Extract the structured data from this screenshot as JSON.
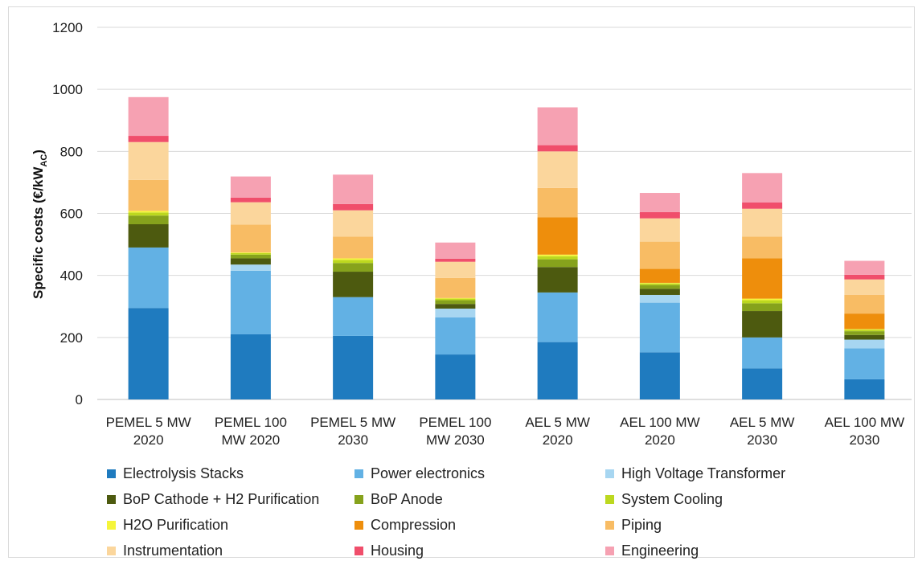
{
  "chart_data": {
    "type": "bar",
    "stacked": true,
    "ylabel": "Specific costs (€/kW",
    "ylabel_sub": "AC",
    "ylabel_close": ")",
    "ylim": [
      0,
      1200
    ],
    "yticks": [
      0,
      200,
      400,
      600,
      800,
      1000,
      1200
    ],
    "grid": "horizontal",
    "legend_position": "bottom",
    "categories": [
      [
        "PEMEL 5 MW",
        "2020"
      ],
      [
        "PEMEL 100",
        "MW 2020"
      ],
      [
        "PEMEL 5 MW",
        "2030"
      ],
      [
        "PEMEL 100",
        "MW 2030"
      ],
      [
        "AEL 5 MW",
        "2020"
      ],
      [
        "AEL 100 MW",
        "2020"
      ],
      [
        "AEL 5 MW",
        "2030"
      ],
      [
        "AEL 100 MW",
        "2030"
      ]
    ],
    "series": [
      {
        "name": "Electrolysis Stacks",
        "color": "#1f7bbf",
        "values": [
          295,
          210,
          205,
          145,
          185,
          152,
          100,
          65
        ]
      },
      {
        "name": "Power electronics",
        "color": "#62b1e4",
        "values": [
          195,
          205,
          125,
          120,
          160,
          160,
          100,
          100
        ]
      },
      {
        "name": "High Voltage Transformer",
        "color": "#a7d6f1",
        "values": [
          0,
          20,
          0,
          28,
          0,
          25,
          0,
          28
        ]
      },
      {
        "name": "BoP Cathode + H2 Purification",
        "color": "#4d5a0f",
        "values": [
          75,
          20,
          82,
          15,
          82,
          20,
          85,
          15
        ]
      },
      {
        "name": "BoP Anode",
        "color": "#86a21c",
        "values": [
          28,
          12,
          28,
          12,
          25,
          12,
          25,
          12
        ]
      },
      {
        "name": "System Cooling",
        "color": "#bcd81f",
        "values": [
          10,
          5,
          10,
          5,
          10,
          5,
          10,
          5
        ]
      },
      {
        "name": "H2O Purification",
        "color": "#f5f53a",
        "values": [
          5,
          2,
          5,
          2,
          5,
          2,
          5,
          2
        ]
      },
      {
        "name": "Compression",
        "color": "#ee8e0c",
        "values": [
          0,
          0,
          0,
          0,
          120,
          45,
          130,
          50
        ]
      },
      {
        "name": "Piping",
        "color": "#f8bc64",
        "values": [
          100,
          90,
          70,
          65,
          95,
          88,
          70,
          60
        ]
      },
      {
        "name": "Instrumentation",
        "color": "#fbd69c",
        "values": [
          122,
          72,
          85,
          52,
          118,
          75,
          90,
          50
        ]
      },
      {
        "name": "Housing",
        "color": "#f04e6b",
        "values": [
          20,
          15,
          20,
          10,
          20,
          20,
          20,
          15
        ]
      },
      {
        "name": "Engineering",
        "color": "#f6a1b2",
        "values": [
          125,
          68,
          95,
          52,
          122,
          62,
          95,
          45
        ]
      }
    ]
  }
}
